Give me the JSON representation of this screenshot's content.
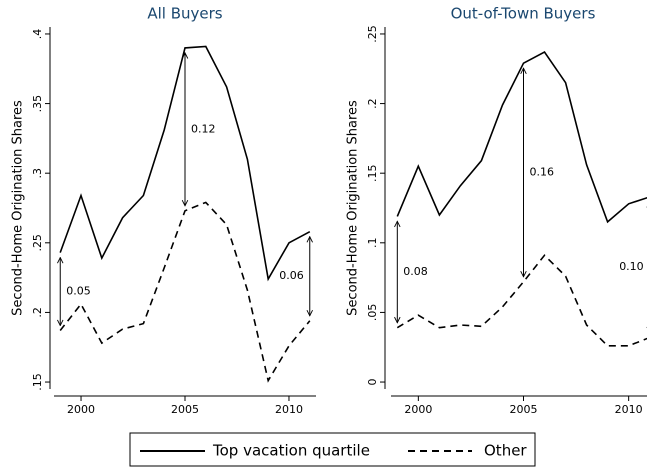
{
  "chart_data": [
    {
      "type": "line",
      "title": "All Buyers",
      "y_label": "Second-Home Origination Shares",
      "x": [
        1999,
        2000,
        2001,
        2002,
        2003,
        2004,
        2005,
        2006,
        2007,
        2008,
        2009,
        2010,
        2011
      ],
      "series": [
        {
          "name": "Top vacation quartile",
          "color": "#000000",
          "dash": "solid",
          "values": [
            0.243,
            0.284,
            0.239,
            0.268,
            0.284,
            0.331,
            0.39,
            0.391,
            0.362,
            0.31,
            0.224,
            0.25,
            0.258
          ]
        },
        {
          "name": "Other",
          "color": "#000000",
          "dash": "dashed",
          "values": [
            0.187,
            0.206,
            0.178,
            0.188,
            0.192,
            0.232,
            0.273,
            0.279,
            0.263,
            0.216,
            0.151,
            0.176,
            0.194
          ]
        }
      ],
      "annotations": [
        {
          "x": 1999,
          "label": "0.05"
        },
        {
          "x": 2005,
          "label": "0.12"
        },
        {
          "x": 2011,
          "label": "0.06"
        }
      ],
      "xlim": [
        1998.7,
        2011.3
      ],
      "xticks": [
        2000,
        2005,
        2010
      ],
      "ylim": [
        0.145,
        0.405
      ],
      "yticks": [
        {
          "value": 0.15,
          "label": ".15"
        },
        {
          "value": 0.2,
          "label": ".2"
        },
        {
          "value": 0.25,
          "label": ".25"
        },
        {
          "value": 0.3,
          "label": ".3"
        },
        {
          "value": 0.35,
          "label": ".35"
        },
        {
          "value": 0.4,
          "label": ".4"
        }
      ]
    },
    {
      "type": "line",
      "title": "Out-of-Town Buyers",
      "y_label": "Second-Home Origination Shares",
      "x": [
        1999,
        2000,
        2001,
        2002,
        2003,
        2004,
        2005,
        2006,
        2007,
        2008,
        2009,
        2010,
        2011
      ],
      "series": [
        {
          "color": "#000000",
          "dash": "solid",
          "values": [
            0.119,
            0.155,
            0.12,
            0.141,
            0.159,
            0.199,
            0.229,
            0.237,
            0.215,
            0.156,
            0.115,
            0.128,
            0.133
          ]
        },
        {
          "color": "#000000",
          "dash": "dashed",
          "values": [
            0.039,
            0.048,
            0.039,
            0.041,
            0.04,
            0.054,
            0.072,
            0.091,
            0.076,
            0.041,
            0.026,
            0.026,
            0.032
          ]
        }
      ],
      "annotations": [
        {
          "x": 1999,
          "label": "0.08"
        },
        {
          "x": 2005,
          "label": "0.16"
        },
        {
          "x": 2011,
          "label": "0.10"
        }
      ],
      "xlim": [
        1998.7,
        2011.3
      ],
      "xticks": [
        2000,
        2005,
        2010
      ],
      "ylim": [
        -0.005,
        0.255
      ],
      "yticks": [
        0,
        {
          "value": 0.05,
          "label": ".05"
        },
        {
          "value": 0.1,
          "label": ".1"
        },
        {
          "value": 0.15,
          "label": ".15"
        },
        {
          "value": 0.2,
          "label": ".2"
        },
        {
          "value": 0.25,
          "label": ".25"
        }
      ]
    }
  ]
}
